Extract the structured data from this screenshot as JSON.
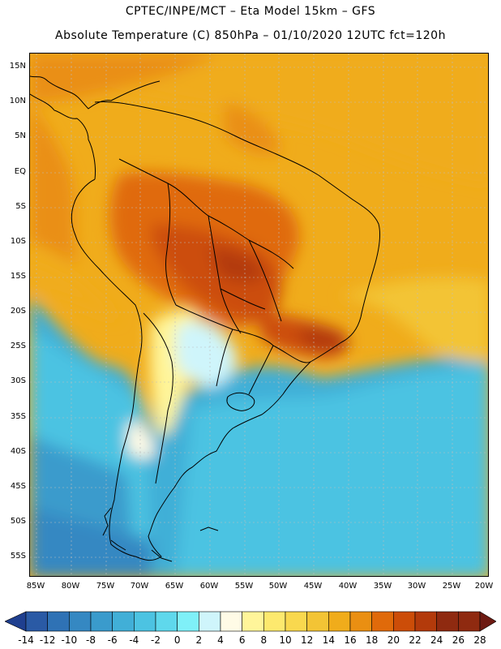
{
  "header": {
    "line1": "CPTEC/INPE/MCT –   Eta Model 15km – GFS",
    "line2": "Absolute Temperature (C) 850hPa – 01/10/2020 12UTC fct=120h"
  },
  "map": {
    "lat_labels": [
      "15N",
      "10N",
      "5N",
      "EQ",
      "5S",
      "10S",
      "15S",
      "20S",
      "25S",
      "30S",
      "35S",
      "40S",
      "45S",
      "50S",
      "55S"
    ],
    "lat_values": [
      15,
      10,
      5,
      0,
      -5,
      -10,
      -15,
      -20,
      -25,
      -30,
      -35,
      -40,
      -45,
      -50,
      -55
    ],
    "lon_labels": [
      "85W",
      "80W",
      "75W",
      "70W",
      "65W",
      "60W",
      "55W",
      "50W",
      "45W",
      "40W",
      "35W",
      "30W",
      "25W",
      "20W"
    ],
    "lon_values": [
      -85,
      -80,
      -75,
      -70,
      -65,
      -60,
      -55,
      -50,
      -45,
      -40,
      -35,
      -30,
      -25,
      -20
    ]
  },
  "colorbar": {
    "labels": [
      "-14",
      "-12",
      "-10",
      "-8",
      "-6",
      "-4",
      "-2",
      "0",
      "2",
      "4",
      "6",
      "8",
      "10",
      "12",
      "14",
      "16",
      "18",
      "20",
      "22",
      "24",
      "26",
      "28"
    ],
    "colors": [
      "#1f3f8f",
      "#2a5aa5",
      "#2f72b5",
      "#3588c2",
      "#3a9bcc",
      "#41afd7",
      "#4cc3e2",
      "#5fd8ec",
      "#7ff0f8",
      "#cff5fb",
      "#fffbe6",
      "#fff59a",
      "#fde96e",
      "#f9d84e",
      "#f3c435",
      "#f0ac1b",
      "#ea8f12",
      "#e06a0a",
      "#cc4d08",
      "#b33a0b",
      "#8f2a10",
      "#6e1a12"
    ]
  }
}
